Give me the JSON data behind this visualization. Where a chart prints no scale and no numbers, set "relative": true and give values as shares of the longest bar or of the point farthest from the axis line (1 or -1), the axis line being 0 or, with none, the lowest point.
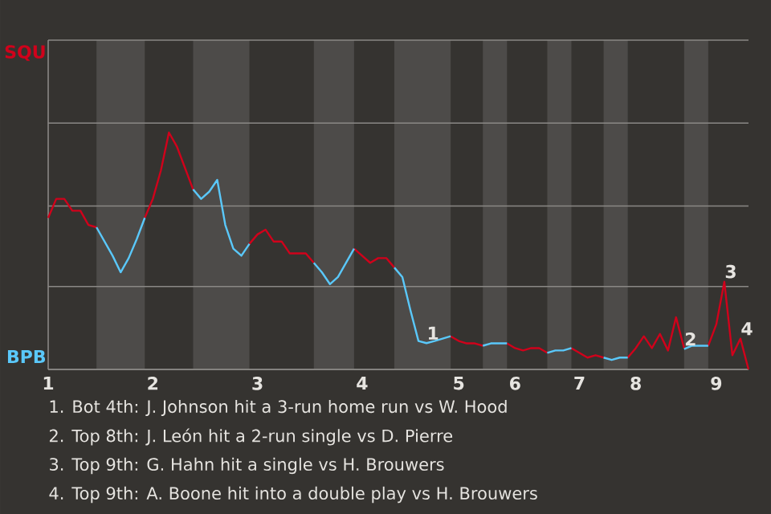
{
  "chart_data": {
    "type": "line",
    "relative": true,
    "categories": [
      "1",
      null,
      null,
      null,
      null,
      null,
      null,
      null,
      null,
      null,
      null,
      null,
      null,
      "2",
      null,
      null,
      null,
      null,
      null,
      null,
      null,
      null,
      null,
      null,
      null,
      null,
      "3",
      null,
      null,
      null,
      null,
      null,
      null,
      null,
      null,
      null,
      null,
      null,
      null,
      "4",
      null,
      null,
      null,
      null,
      null,
      null,
      null,
      null,
      null,
      null,
      null,
      "5",
      null,
      null,
      null,
      null,
      null,
      null,
      "6",
      null,
      null,
      null,
      null,
      null,
      null,
      null,
      "7",
      null,
      null,
      null,
      null,
      null,
      null,
      "8",
      null,
      null,
      null,
      null,
      null,
      null,
      null,
      null,
      null,
      "9",
      null,
      null,
      null,
      null
    ],
    "ref_lines": [
      {
        "axis": "y",
        "value": 0.35,
        "color": "#8a8885"
      },
      {
        "axis": "y",
        "value": 0.69,
        "color": "#8a8885"
      },
      {
        "axis": "y",
        "value": 1.04,
        "color": "#8a8885"
      },
      {
        "axis": "y",
        "value": 1.39,
        "color": "#8a8885"
      }
    ],
    "series": [
      {
        "color": "#d0021b",
        "values": [
          0.64,
          0.72,
          0.72,
          0.67,
          0.67,
          0.61,
          0.6,
          null,
          null,
          null,
          null,
          null,
          0.64,
          0.72,
          0.84,
          1,
          0.94,
          0.85,
          0.76,
          null,
          null,
          null,
          null,
          null,
          null,
          0.53,
          0.57,
          0.59,
          0.54,
          0.54,
          0.49,
          0.49,
          0.49,
          0.45,
          null,
          null,
          null,
          null,
          0.51,
          0.48,
          0.45,
          0.47,
          0.47,
          0.43,
          null,
          null,
          null,
          null,
          null,
          null,
          0.14,
          0.12,
          0.11,
          0.11,
          0.1,
          null,
          null,
          0.11,
          0.09,
          0.08,
          0.09,
          0.09,
          0.07,
          null,
          null,
          0.09,
          0.07,
          0.05,
          0.06,
          0.05,
          null,
          null,
          0.05,
          0.09,
          0.14,
          0.09,
          0.15,
          0.08,
          0.22,
          0.09,
          null,
          null,
          0.1,
          0.19,
          0.37,
          0.06,
          0.13,
          0
        ]
      },
      {
        "color": "#5ac8fa",
        "values": [
          null,
          null,
          null,
          null,
          null,
          null,
          0.6,
          0.54,
          0.48,
          0.41,
          0.47,
          0.55,
          0.64,
          null,
          null,
          null,
          null,
          null,
          0.76,
          0.72,
          0.75,
          0.8,
          0.61,
          0.51,
          0.48,
          0.53,
          null,
          null,
          null,
          null,
          null,
          null,
          null,
          0.45,
          0.41,
          0.36,
          0.39,
          0.45,
          0.51,
          null,
          null,
          null,
          null,
          0.43,
          0.39,
          0.25,
          0.12,
          0.111,
          0.12,
          0.13,
          0.14,
          null,
          null,
          null,
          0.1,
          0.11,
          0.11,
          0.11,
          null,
          null,
          null,
          null,
          0.07,
          0.08,
          0.08,
          0.09,
          null,
          null,
          null,
          0.05,
          0.04,
          0.05,
          0.05,
          null,
          null,
          null,
          null,
          null,
          null,
          0.086,
          0.1,
          0.1,
          0.1,
          null,
          null,
          null,
          null,
          null
        ]
      }
    ],
    "annotations": [
      "SQU",
      "BPB",
      {
        "text": "1",
        "y": 0.111
      },
      {
        "text": "2",
        "y": 0.086
      },
      {
        "text": "3",
        "y": 0.37
      },
      {
        "text": "4",
        "y": 0.13
      },
      "1. Bot 4th: J. Johnson hit a 3-run home run vs W. Hood",
      "2. Top 8th: J. León hit a 2-run single vs D. Pierre",
      "3. Top 9th: G. Hahn hit a single vs H. Brouwers",
      "4. Top 9th: A. Boone hit into a double play vs H. Brouwers"
    ]
  }
}
